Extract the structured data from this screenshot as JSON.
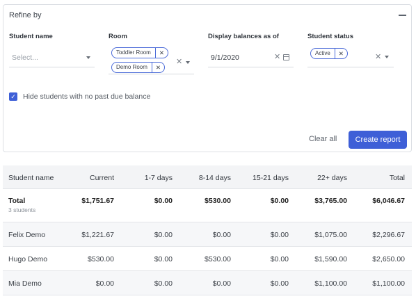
{
  "refine": {
    "title": "Refine by",
    "student_name": {
      "label": "Student name",
      "placeholder": "Select..."
    },
    "room": {
      "label": "Room",
      "chips": [
        "Toddler Room",
        "Demo Room"
      ]
    },
    "balances": {
      "label": "Display balances as of",
      "value": "9/1/2020"
    },
    "status": {
      "label": "Student status",
      "chips": [
        "Active"
      ]
    },
    "hide_checkbox": {
      "checked": true,
      "label": "Hide students with no past due balance"
    },
    "clear_all": "Clear all",
    "create_report": "Create report"
  },
  "table": {
    "columns": [
      "Student name",
      "Current",
      "1-7 days",
      "8-14 days",
      "15-21 days",
      "22+ days",
      "Total"
    ],
    "total": {
      "name": "Total",
      "subtitle": "3 students",
      "values": [
        "$1,751.67",
        "$0.00",
        "$530.00",
        "$0.00",
        "$3,765.00",
        "$6,046.67"
      ]
    },
    "rows": [
      {
        "name": "Felix Demo",
        "values": [
          "$1,221.67",
          "$0.00",
          "$0.00",
          "$0.00",
          "$1,075.00",
          "$2,296.67"
        ]
      },
      {
        "name": "Hugo Demo",
        "values": [
          "$530.00",
          "$0.00",
          "$530.00",
          "$0.00",
          "$1,590.00",
          "$2,650.00"
        ]
      },
      {
        "name": "Mia Demo",
        "values": [
          "$0.00",
          "$0.00",
          "$0.00",
          "$0.00",
          "$1,100.00",
          "$1,100.00"
        ]
      }
    ]
  },
  "colors": {
    "accent": "#3e5fd7",
    "border": "#dcdfe4",
    "header_bg": "#f3f4f6"
  }
}
